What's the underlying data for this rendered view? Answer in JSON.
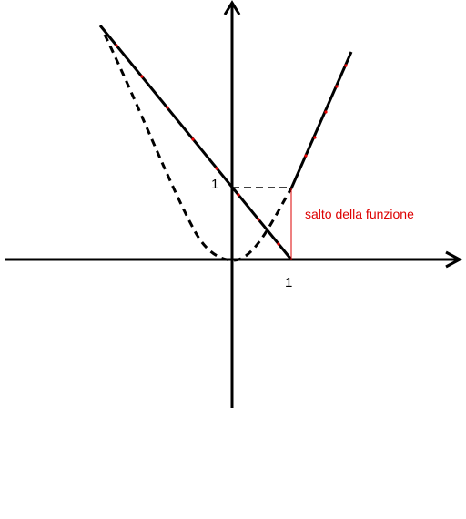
{
  "labels": {
    "y_tick": "1",
    "x_tick": "1",
    "annotation": "salto della funzione"
  }
}
